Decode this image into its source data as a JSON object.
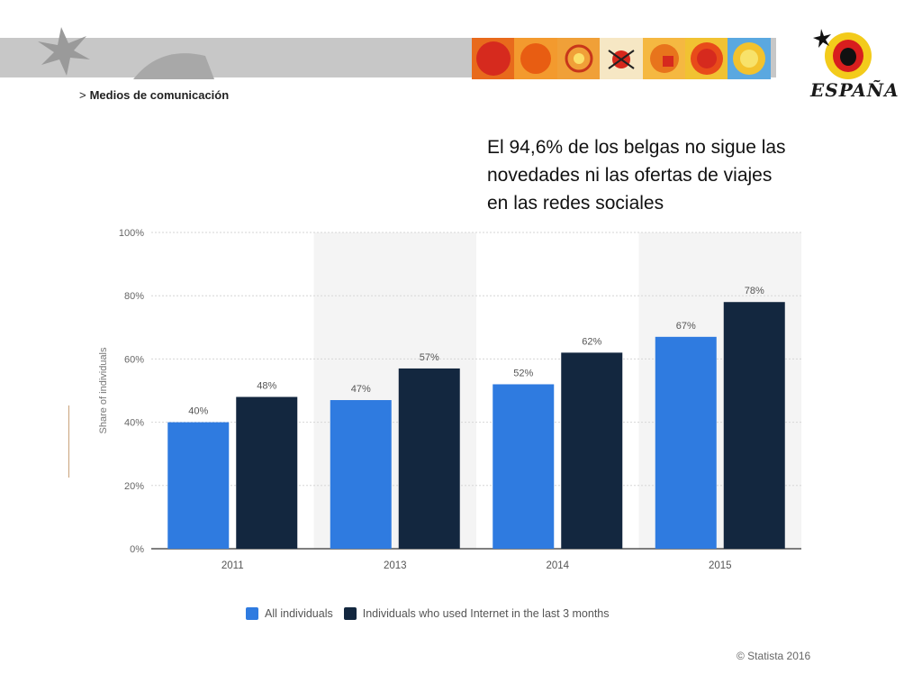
{
  "breadcrumb": {
    "separator": ">",
    "label": "Medios de comunicación"
  },
  "headline": "El 94,6% de los belgas no sigue las novedades ni las ofertas de viajes en las redes sociales",
  "logo": {
    "text": "ESPAÑA"
  },
  "colors": {
    "series_all": "#2f7be0",
    "series_internet": "#13273f",
    "band": "#c7c7c7",
    "shade": "#f4f4f4"
  },
  "chart_data": {
    "type": "bar",
    "categories": [
      "2011",
      "2013",
      "2014",
      "2015"
    ],
    "series": [
      {
        "name": "All individuals",
        "values": [
          40,
          47,
          52,
          67
        ]
      },
      {
        "name": "Individuals who used Internet in the last 3 months",
        "values": [
          48,
          57,
          62,
          78
        ]
      }
    ],
    "data_labels": [
      [
        "40%",
        "47%",
        "52%",
        "67%"
      ],
      [
        "48%",
        "57%",
        "62%",
        "78%"
      ]
    ],
    "ylabel": "Share of individuals",
    "ylim": [
      0,
      100
    ],
    "yticks": [
      "0%",
      "20%",
      "40%",
      "60%",
      "80%",
      "100%"
    ],
    "grid": true,
    "legend": "bottom"
  },
  "credit": "© Statista 2016"
}
